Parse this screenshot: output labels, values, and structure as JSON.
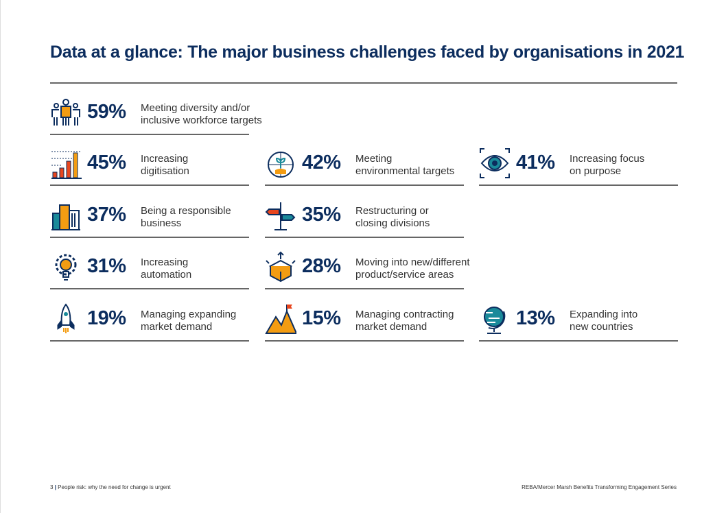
{
  "title": "Data at a glance: The major business challenges faced by organisations in 2021",
  "items": [
    {
      "icon": "people-icon",
      "pct": "59%",
      "l1": "Meeting diversity and/or",
      "l2": "inclusive workforce targets"
    },
    {
      "icon": "bar-chart-icon",
      "pct": "45%",
      "l1": "Increasing",
      "l2": "digitisation"
    },
    {
      "icon": "globe-plant-icon",
      "pct": "42%",
      "l1": "Meeting",
      "l2": "environmental targets"
    },
    {
      "icon": "eye-icon",
      "pct": "41%",
      "l1": "Increasing focus",
      "l2": "on purpose"
    },
    {
      "icon": "buildings-icon",
      "pct": "37%",
      "l1": "Being a responsible",
      "l2": "business"
    },
    {
      "icon": "signpost-icon",
      "pct": "35%",
      "l1": "Restructuring or",
      "l2": "closing divisions"
    },
    {
      "icon": "gear-bulb-icon",
      "pct": "31%",
      "l1": "Increasing",
      "l2": "automation"
    },
    {
      "icon": "box-arrows-icon",
      "pct": "28%",
      "l1": "Moving into new/different",
      "l2": "product/service areas"
    },
    {
      "icon": "rocket-icon",
      "pct": "19%",
      "l1": "Managing expanding",
      "l2": "market demand"
    },
    {
      "icon": "mountain-flag-icon",
      "pct": "15%",
      "l1": "Managing contracting",
      "l2": "market demand"
    },
    {
      "icon": "globe-stand-icon",
      "pct": "13%",
      "l1": "Expanding into",
      "l2": "new countries"
    }
  ],
  "footer": {
    "page": "3",
    "sep": "|",
    "left": "People risk: why the need for change is urgent",
    "right": "REBA/Mercer Marsh Benefits Transforming Engagement Series"
  },
  "colors": {
    "navy": "#0c2d5e",
    "orange": "#f39c12",
    "red": "#e8461e",
    "teal": "#1a8a9a"
  }
}
